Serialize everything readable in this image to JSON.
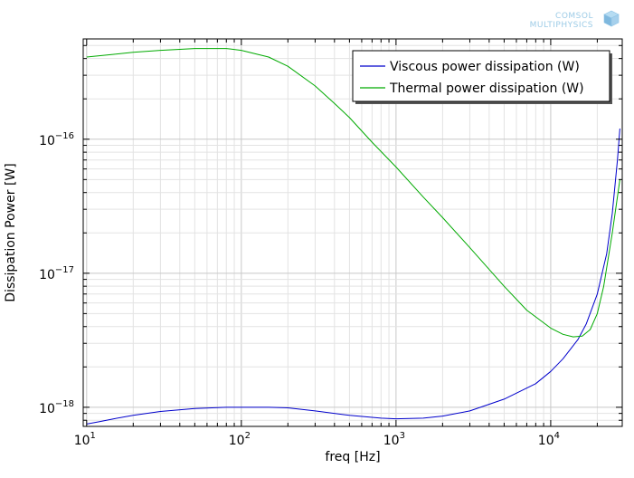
{
  "logo": {
    "line1": "COMSOL",
    "line2": "MULTIPHYSICS"
  },
  "chart_data": {
    "type": "line",
    "xscale": "log",
    "yscale": "log",
    "xlim": [
      9.5,
      29000
    ],
    "ylim": [
      7.2e-19,
      5.6e-16
    ],
    "xlabel": "freq [Hz]",
    "ylabel": "Dissipation Power [W]",
    "grid": true,
    "legend_position": "top-right",
    "x_ticks": [
      {
        "value": 10,
        "base": "10",
        "exp": "1"
      },
      {
        "value": 100,
        "base": "10",
        "exp": "2"
      },
      {
        "value": 1000,
        "base": "10",
        "exp": "3"
      },
      {
        "value": 10000,
        "base": "10",
        "exp": "4"
      }
    ],
    "y_ticks": [
      {
        "value": 1e-18,
        "base": "10",
        "exp": "−18"
      },
      {
        "value": 1e-17,
        "base": "10",
        "exp": "−17"
      },
      {
        "value": 1e-16,
        "base": "10",
        "exp": "−16"
      }
    ],
    "series": [
      {
        "name": "Viscous power dissipation (W)",
        "color": "#0000cc",
        "x": [
          10,
          12,
          15,
          20,
          30,
          50,
          80,
          100,
          150,
          200,
          300,
          500,
          800,
          1000,
          1500,
          2000,
          3000,
          5000,
          8000,
          10000,
          12000,
          15000,
          17000,
          20000,
          23000,
          25000,
          27000,
          28000
        ],
        "y": [
          7.5e-19,
          7.8e-19,
          8.2e-19,
          8.7e-19,
          9.3e-19,
          9.8e-19,
          1e-18,
          1e-18,
          1e-18,
          9.9e-19,
          9.4e-19,
          8.7e-19,
          8.3e-19,
          8.2e-19,
          8.3e-19,
          8.6e-19,
          9.4e-19,
          1.15e-18,
          1.5e-18,
          1.85e-18,
          2.3e-18,
          3.2e-18,
          4.2e-18,
          7e-18,
          1.4e-17,
          2.8e-17,
          7e-17,
          1.2e-16
        ]
      },
      {
        "name": "Thermal power dissipation (W)",
        "color": "#00aa00",
        "x": [
          10,
          15,
          20,
          30,
          50,
          80,
          100,
          150,
          200,
          300,
          400,
          500,
          700,
          1000,
          1500,
          2000,
          3000,
          5000,
          7000,
          10000,
          12000,
          14000,
          16000,
          18000,
          20000,
          22000,
          25000,
          28000
        ],
        "y": [
          4.1e-16,
          4.3e-16,
          4.45e-16,
          4.6e-16,
          4.75e-16,
          4.75e-16,
          4.6e-16,
          4.1e-16,
          3.5e-16,
          2.5e-16,
          1.85e-16,
          1.45e-16,
          9.5e-17,
          6.2e-17,
          3.7e-17,
          2.6e-17,
          1.55e-17,
          8e-18,
          5.3e-18,
          3.9e-18,
          3.5e-18,
          3.35e-18,
          3.4e-18,
          3.8e-18,
          5e-18,
          8e-18,
          2e-17,
          5e-17
        ]
      }
    ]
  }
}
